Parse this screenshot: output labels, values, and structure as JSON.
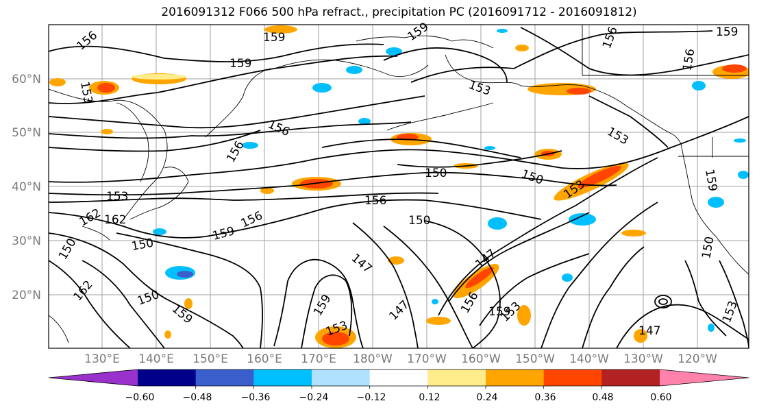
{
  "title": "2016091312 F066 500 hPa refract., precipitation PC (2016091712 - 2016091812)",
  "lat_labels": [
    "60°N",
    "50°N",
    "40°N",
    "30°N",
    "20°N"
  ],
  "lon_labels": [
    "130°E",
    "140°E",
    "150°E",
    "160°E",
    "170°E",
    "180°W",
    "170°W",
    "160°W",
    "150°W",
    "140°W",
    "130°W",
    "120°W"
  ],
  "contour_labels": [
    "156",
    "159",
    "159",
    "159",
    "156",
    "156",
    "159",
    "153",
    "153",
    "156",
    "156",
    "153",
    "159",
    "150",
    "150",
    "153",
    "153",
    "156",
    "150",
    "162",
    "156",
    "159",
    "162",
    "162",
    "150",
    "150",
    "159",
    "150",
    "147",
    "147",
    "147",
    "159",
    "156",
    "159",
    "153",
    "153",
    "147",
    "153",
    "150"
  ],
  "colorbar": {
    "ticks": [
      "−0.60",
      "−0.48",
      "−0.36",
      "−0.24",
      "−0.12",
      "0.12",
      "0.24",
      "0.36",
      "0.48",
      "0.60"
    ],
    "colors": [
      "#9932CC",
      "#00008B",
      "#3A5FCD",
      "#00BFFF",
      "#B0E2FF",
      "#FFFFFF",
      "#FFEC8B",
      "#FFA500",
      "#FF4500",
      "#B22222",
      "#FF82AB"
    ]
  }
}
